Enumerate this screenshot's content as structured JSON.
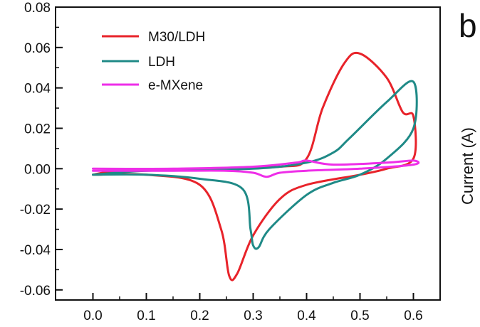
{
  "chart_data": {
    "type": "line",
    "xlim": [
      -0.07,
      0.65
    ],
    "ylim": [
      -0.065,
      0.08
    ],
    "x_ticks": [
      0.0,
      0.1,
      0.2,
      0.3,
      0.4,
      0.5,
      0.6
    ],
    "x_tick_labels": [
      "0.0",
      "0.1",
      "0.2",
      "0.3",
      "0.4",
      "0.5",
      "0.6"
    ],
    "y_ticks": [
      0.08,
      0.06,
      0.04,
      0.02,
      0.0,
      -0.02,
      -0.04,
      -0.06
    ],
    "y_tick_labels": [
      "0.08",
      "0.06",
      "0.04",
      "0.02",
      "0.00",
      "-0.02",
      "-0.04",
      "-0.06"
    ],
    "grid": false,
    "legend_placement": "top-left",
    "series": [
      {
        "name": "M30/LDH",
        "color": "#e8232a",
        "points": [
          [
            0.0,
            -0.003
          ],
          [
            0.1,
            -0.003
          ],
          [
            0.2,
            -0.008
          ],
          [
            0.24,
            -0.03
          ],
          [
            0.255,
            -0.053
          ],
          [
            0.27,
            -0.052
          ],
          [
            0.3,
            -0.033
          ],
          [
            0.35,
            -0.015
          ],
          [
            0.4,
            -0.008
          ],
          [
            0.5,
            -0.003
          ],
          [
            0.55,
            0.0
          ],
          [
            0.6,
            0.005
          ],
          [
            0.6,
            0.026
          ],
          [
            0.58,
            0.028
          ],
          [
            0.55,
            0.045
          ],
          [
            0.5,
            0.057
          ],
          [
            0.47,
            0.052
          ],
          [
            0.43,
            0.03
          ],
          [
            0.4,
            0.005
          ],
          [
            0.35,
            0.001
          ],
          [
            0.2,
            0.0
          ],
          [
            0.05,
            -0.001
          ],
          [
            0.0,
            -0.003
          ]
        ]
      },
      {
        "name": "LDH",
        "color": "#1f8a87",
        "points": [
          [
            0.0,
            -0.003
          ],
          [
            0.1,
            -0.003
          ],
          [
            0.2,
            -0.005
          ],
          [
            0.28,
            -0.01
          ],
          [
            0.295,
            -0.03
          ],
          [
            0.3,
            -0.038
          ],
          [
            0.31,
            -0.039
          ],
          [
            0.33,
            -0.03
          ],
          [
            0.4,
            -0.013
          ],
          [
            0.45,
            -0.007
          ],
          [
            0.5,
            -0.003
          ],
          [
            0.55,
            0.005
          ],
          [
            0.6,
            0.02
          ],
          [
            0.6,
            0.043
          ],
          [
            0.55,
            0.033
          ],
          [
            0.48,
            0.015
          ],
          [
            0.45,
            0.008
          ],
          [
            0.4,
            0.003
          ],
          [
            0.3,
            0.0
          ],
          [
            0.1,
            -0.001
          ],
          [
            0.0,
            -0.003
          ]
        ]
      },
      {
        "name": "e-MXene",
        "color": "#ee2ee8",
        "points": [
          [
            0.0,
            -0.001
          ],
          [
            0.15,
            -0.001
          ],
          [
            0.25,
            -0.001
          ],
          [
            0.3,
            -0.002
          ],
          [
            0.325,
            -0.004
          ],
          [
            0.35,
            -0.002
          ],
          [
            0.4,
            -0.001
          ],
          [
            0.5,
            0.0
          ],
          [
            0.6,
            0.002
          ],
          [
            0.6,
            0.004
          ],
          [
            0.55,
            0.003
          ],
          [
            0.45,
            0.002
          ],
          [
            0.4,
            0.004
          ],
          [
            0.38,
            0.003
          ],
          [
            0.3,
            0.001
          ],
          [
            0.15,
            0.0
          ],
          [
            0.0,
            0.0
          ]
        ]
      }
    ],
    "panel_letter": "b",
    "side_ylabel": "Current (A)"
  }
}
